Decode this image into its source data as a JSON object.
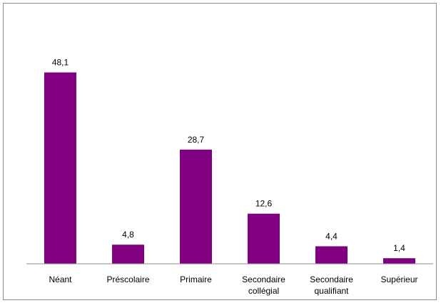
{
  "chart_data": {
    "type": "bar",
    "categories": [
      [
        "Néant"
      ],
      [
        "Préscolaire"
      ],
      [
        "Primaire"
      ],
      [
        "Secondaire",
        "collégial"
      ],
      [
        "Secondaire",
        "qualifiant"
      ],
      [
        "Supérieur"
      ]
    ],
    "values": [
      48.1,
      4.8,
      28.7,
      12.6,
      4.4,
      1.4
    ],
    "value_labels": [
      "48,1",
      "4,8",
      "28,7",
      "12,6",
      "4,4",
      "1,4"
    ],
    "title": "",
    "xlabel": "",
    "ylabel": "",
    "ylim": [
      0,
      50
    ],
    "grid": false,
    "legend": "none",
    "bar_color": "#800080",
    "axis_color": "#8c8c8c"
  }
}
